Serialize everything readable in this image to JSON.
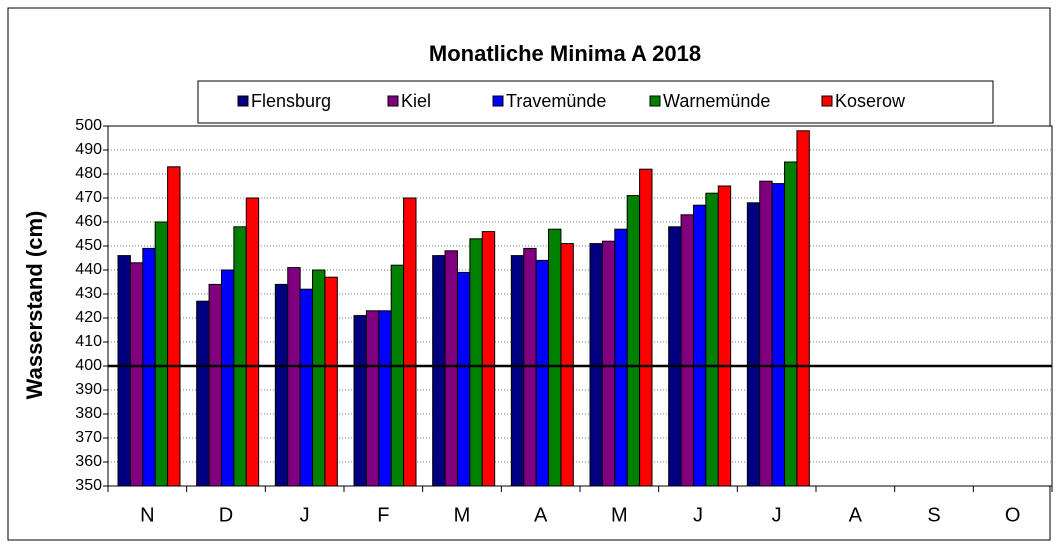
{
  "chart_data": {
    "type": "bar",
    "title": "Monatliche Minima A 2018",
    "y_label": "Wasserstand  (cm)",
    "categories": [
      "N",
      "D",
      "J",
      "F",
      "M",
      "A",
      "M",
      "J",
      "J",
      "A",
      "S",
      "O"
    ],
    "series": [
      {
        "name": "Flensburg",
        "color": "#000080",
        "values": [
          446,
          427,
          434,
          421,
          446,
          446,
          451,
          458,
          468,
          null,
          null,
          null
        ]
      },
      {
        "name": "Kiel",
        "color": "#800080",
        "values": [
          443,
          434,
          441,
          423,
          448,
          449,
          452,
          463,
          477,
          null,
          null,
          null
        ]
      },
      {
        "name": "Travemünde",
        "color": "#0000ff",
        "values": [
          449,
          440,
          432,
          423,
          439,
          444,
          457,
          467,
          476,
          null,
          null,
          null
        ]
      },
      {
        "name": "Warnemünde",
        "color": "#008000",
        "values": [
          460,
          458,
          440,
          442,
          453,
          457,
          471,
          472,
          485,
          null,
          null,
          null
        ]
      },
      {
        "name": "Koserow",
        "color": "#ff0000",
        "values": [
          483,
          470,
          437,
          470,
          456,
          451,
          482,
          475,
          498,
          null,
          null,
          null
        ]
      }
    ],
    "ylim": [
      350,
      500
    ],
    "yticks": [
      350,
      360,
      370,
      380,
      390,
      400,
      410,
      420,
      430,
      440,
      450,
      460,
      470,
      480,
      490,
      500
    ],
    "reference_line": 400,
    "grid": true
  }
}
